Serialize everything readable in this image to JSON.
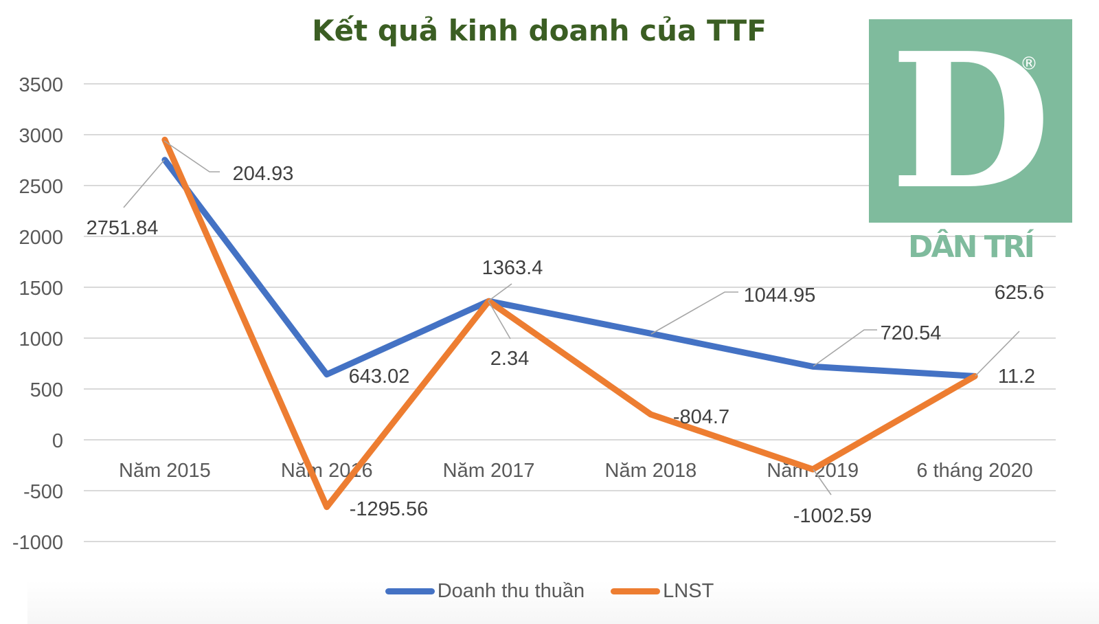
{
  "chart_data": {
    "type": "line",
    "title": "Kết quả kinh doanh của TTF",
    "xlabel": "",
    "ylabel": "",
    "categories": [
      "Năm 2015",
      "Năm 2016",
      "Năm 2017",
      "Năm 2018",
      "Năm 2019",
      "6 tháng 2020"
    ],
    "series": [
      {
        "name": "Doanh thu thuần",
        "color": "#4472c4",
        "values": [
          2751.84,
          643.02,
          1363.4,
          1044.95,
          720.54,
          625.6
        ],
        "labels": [
          "2751.84",
          "643.02",
          "1363.4",
          "1044.95",
          "720.54",
          "625.6"
        ]
      },
      {
        "name": "LNST",
        "color": "#ed7d31",
        "values": [
          204.93,
          -1295.56,
          2.34,
          -804.7,
          -1002.59,
          11.2
        ],
        "labels": [
          "204.93",
          "-1295.56",
          "2.34",
          "-804.7",
          "-1002.59",
          "11.2"
        ],
        "plotted_positions_approx": [
          2950,
          -660,
          1363,
          250,
          -290,
          625
        ]
      }
    ],
    "yticks": [
      "3500",
      "3000",
      "2500",
      "2000",
      "1500",
      "1000",
      "500",
      "0",
      "-500",
      "-1000"
    ],
    "ylim": [
      -1000,
      3500
    ],
    "grid": true,
    "legend_position": "bottom"
  },
  "logo": {
    "letter": "D",
    "registered_mark": "®",
    "wordmark": "DÂN TRÍ",
    "color": "#7fbb9d"
  },
  "colors": {
    "title": "#3b5e23",
    "axis_text": "#595959",
    "gridline": "#d9d9d9",
    "leader_line": "#a6a6a6",
    "label_text": "#404040"
  }
}
